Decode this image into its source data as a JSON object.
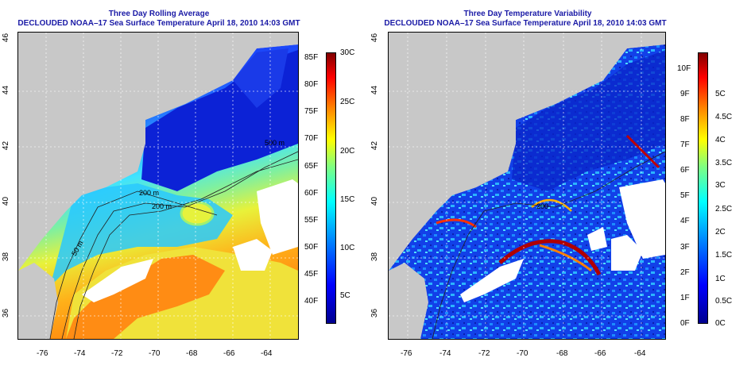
{
  "left": {
    "title": "Three Day Rolling Average",
    "subtitle": "DECLOUDED NOAA–17 Sea Surface Temperature April 18, 2010 14:03 GMT",
    "x_ticks": [
      "-76",
      "-74",
      "-72",
      "-70",
      "-68",
      "-66",
      "-64"
    ],
    "y_ticks": [
      "36",
      "38",
      "40",
      "42",
      "44",
      "46"
    ],
    "colorbar_f": [
      "40F",
      "45F",
      "50F",
      "55F",
      "60F",
      "65F",
      "70F",
      "75F",
      "80F",
      "85F"
    ],
    "colorbar_c": [
      "5C",
      "10C",
      "15C",
      "20C",
      "25C",
      "30C"
    ],
    "contour_labels": [
      "50 m",
      "200 m",
      "200 m",
      "500 m"
    ]
  },
  "right": {
    "title": "Three Day Temperature Variability",
    "subtitle": "DECLOUDED NOAA–17 Sea Surface Temperature April 18, 2010 14:03 GMT",
    "x_ticks": [
      "-76",
      "-74",
      "-72",
      "-70",
      "-68",
      "-66",
      "-64"
    ],
    "y_ticks": [
      "36",
      "38",
      "40",
      "42",
      "44",
      "46"
    ],
    "colorbar_f": [
      "0F",
      "1F",
      "2F",
      "3F",
      "4F",
      "5F",
      "6F",
      "7F",
      "8F",
      "9F",
      "10F"
    ],
    "colorbar_c": [
      "0C",
      "0.5C",
      "1C",
      "1.5C",
      "2C",
      "2.5C",
      "3C",
      "3.5C",
      "4C",
      "4.5C",
      "5C"
    ],
    "contour_labels": [
      "200"
    ]
  },
  "colors": {
    "title": "#1a1aa6",
    "land": "#c8c8c8",
    "cloud": "#ffffff",
    "jet_scale": [
      "#00008f",
      "#0000ff",
      "#0080ff",
      "#00ffff",
      "#80ff80",
      "#ffff00",
      "#ff8000",
      "#ff0000",
      "#800000"
    ]
  }
}
